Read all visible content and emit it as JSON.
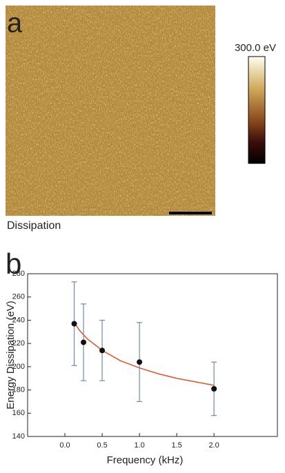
{
  "chart_data": [
    {
      "type": "image",
      "panel_label": "a",
      "caption": "Dissipation",
      "colorbar_label": "300.0 eV"
    },
    {
      "type": "scatter",
      "panel_label": "b",
      "x_label": "Frequency (kHz)",
      "y_label": "Energy Dissipation (eV)",
      "x": [
        0.125,
        0.25,
        0.5,
        1.0,
        2.0
      ],
      "values": [
        237,
        221,
        214,
        204,
        181
      ],
      "errors": [
        36,
        33,
        26,
        34,
        23
      ],
      "color": "#111111",
      "error_color": "#6f86b8",
      "fit": {
        "x": [
          0.125,
          0.2,
          0.3,
          0.5,
          0.75,
          1.0,
          1.25,
          1.5,
          1.75,
          2.0
        ],
        "values": [
          238,
          231,
          224,
          214,
          205,
          199,
          194,
          190,
          187,
          184
        ],
        "color": "#e8502a"
      },
      "xlim": [
        -0.5,
        2.85
      ],
      "ylim": [
        140,
        280
      ],
      "xticks": [
        {
          "value": 0,
          "label": "0.0"
        },
        0.5,
        {
          "value": 1,
          "label": "1.0"
        },
        1.5,
        {
          "value": 2,
          "label": "2.0"
        }
      ],
      "yticks": [
        140,
        160,
        180,
        200,
        220,
        240,
        260,
        280
      ]
    }
  ]
}
